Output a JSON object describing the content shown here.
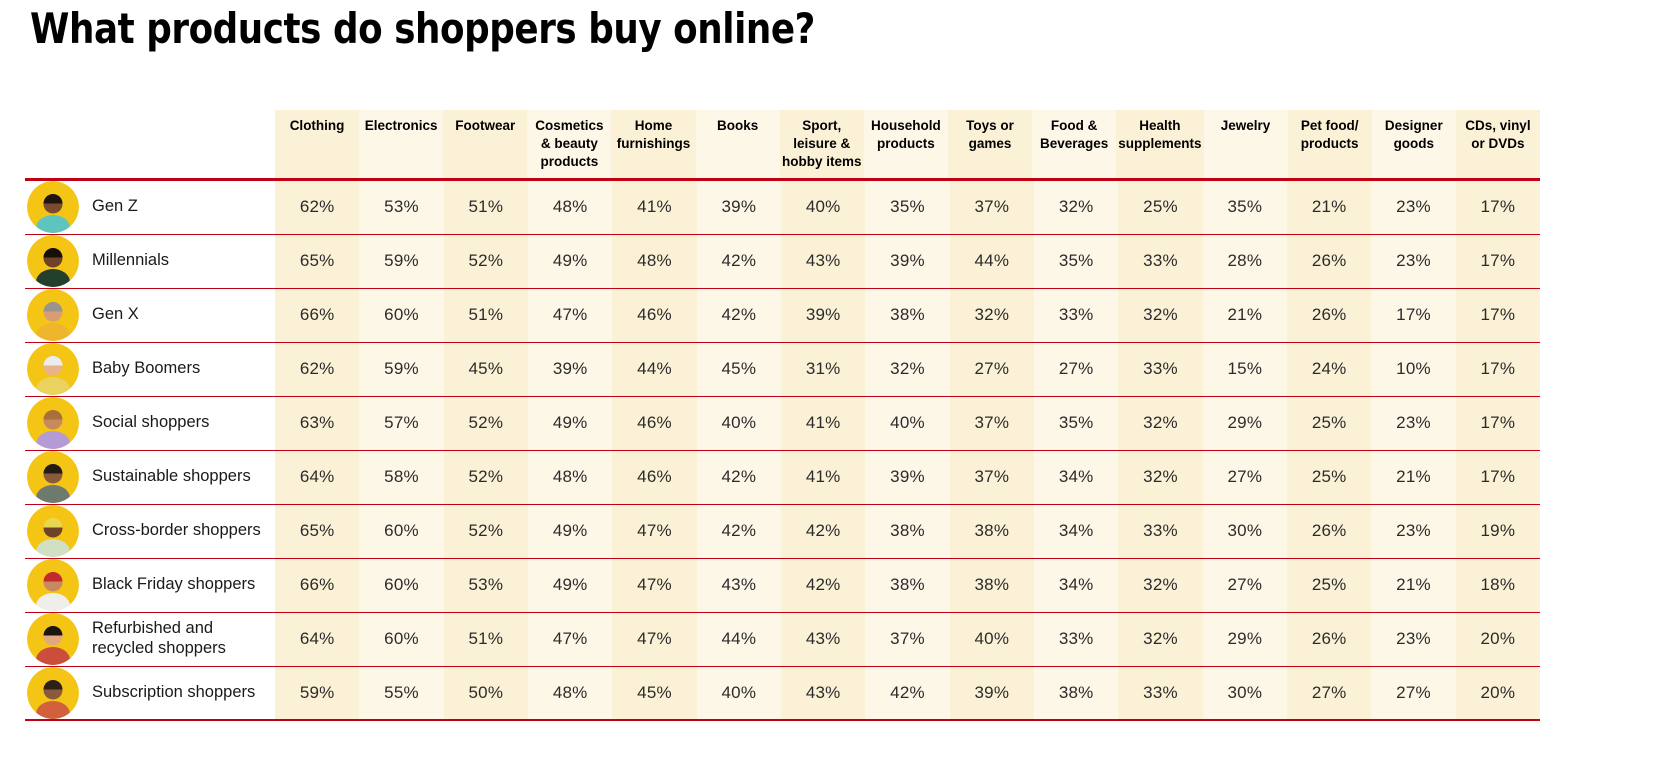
{
  "title": "What products do shoppers buy online?",
  "colors": {
    "page_bg": "#ffffff",
    "title": "#000000",
    "rule_red": "#c00014",
    "col_cream": "#fbf1d6",
    "col_cream_light": "#fdf7e8",
    "header_text": "#000000",
    "cell_text": "#2b2b2b",
    "label_text": "#1a1a1a",
    "avatar_bg_yellow": "#f5c515"
  },
  "table": {
    "columns": [
      "Clothing",
      "Electronics",
      "Footwear",
      "Cosmetics & beauty products",
      "Home furnishings",
      "Books",
      "Sport, leisure & hobby items",
      "Household products",
      "Toys or games",
      "Food & Beverages",
      "Health supplements",
      "Jewelry",
      "Pet food/ products",
      "Designer goods",
      "CDs, vinyl or DVDs"
    ],
    "rows": [
      {
        "id": "gen-z",
        "label": "Gen Z",
        "avatar": {
          "bg": "#f5c515",
          "skin": "#7c4a2d",
          "hair": "#201410",
          "shirt": "#5fc4bd"
        },
        "cells": [
          "62%",
          "53%",
          "51%",
          "48%",
          "41%",
          "39%",
          "40%",
          "35%",
          "37%",
          "32%",
          "25%",
          "35%",
          "21%",
          "23%",
          "17%"
        ]
      },
      {
        "id": "millennials",
        "label": "Millennials",
        "avatar": {
          "bg": "#f5c515",
          "skin": "#6e4226",
          "hair": "#17100a",
          "shirt": "#23402c"
        },
        "cells": [
          "65%",
          "59%",
          "52%",
          "49%",
          "48%",
          "42%",
          "43%",
          "39%",
          "44%",
          "35%",
          "33%",
          "28%",
          "26%",
          "23%",
          "17%"
        ]
      },
      {
        "id": "gen-x",
        "label": "Gen X",
        "avatar": {
          "bg": "#f5c515",
          "skin": "#d99d74",
          "hair": "#9a958c",
          "shirt": "#efb52c"
        },
        "cells": [
          "66%",
          "60%",
          "51%",
          "47%",
          "46%",
          "42%",
          "39%",
          "38%",
          "32%",
          "33%",
          "32%",
          "21%",
          "26%",
          "17%",
          "17%"
        ]
      },
      {
        "id": "baby-boomers",
        "label": "Baby Boomers",
        "avatar": {
          "bg": "#f5c515",
          "skin": "#e8b28b",
          "hair": "#ececec",
          "shirt": "#e9d35e"
        },
        "cells": [
          "62%",
          "59%",
          "45%",
          "39%",
          "44%",
          "45%",
          "31%",
          "32%",
          "27%",
          "27%",
          "33%",
          "15%",
          "24%",
          "10%",
          "17%"
        ]
      },
      {
        "id": "social-shoppers",
        "label": "Social shoppers",
        "avatar": {
          "bg": "#f5c515",
          "skin": "#c8895f",
          "hair": "#a8713c",
          "shirt": "#b59bd5"
        },
        "cells": [
          "63%",
          "57%",
          "52%",
          "49%",
          "46%",
          "40%",
          "41%",
          "40%",
          "37%",
          "35%",
          "32%",
          "29%",
          "25%",
          "23%",
          "17%"
        ]
      },
      {
        "id": "sustainable-shoppers",
        "label": "Sustainable shoppers",
        "avatar": {
          "bg": "#f5c515",
          "skin": "#8a5a3a",
          "hair": "#241b14",
          "shirt": "#6f7a6e"
        },
        "cells": [
          "64%",
          "58%",
          "52%",
          "48%",
          "46%",
          "42%",
          "41%",
          "39%",
          "37%",
          "34%",
          "32%",
          "27%",
          "25%",
          "21%",
          "17%"
        ]
      },
      {
        "id": "cross-border-shoppers",
        "label": "Cross-border shoppers",
        "avatar": {
          "bg": "#f5c515",
          "skin": "#6e4226",
          "hair": "#e9d84f",
          "shirt": "#cfe0c4"
        },
        "cells": [
          "65%",
          "60%",
          "52%",
          "49%",
          "47%",
          "42%",
          "42%",
          "38%",
          "38%",
          "34%",
          "33%",
          "30%",
          "26%",
          "23%",
          "19%"
        ]
      },
      {
        "id": "black-friday-shoppers",
        "label": "Black Friday shoppers",
        "avatar": {
          "bg": "#f5c515",
          "skin": "#c8895f",
          "hair": "#c22a2e",
          "shirt": "#efeeea"
        },
        "cells": [
          "66%",
          "60%",
          "53%",
          "49%",
          "47%",
          "43%",
          "42%",
          "38%",
          "38%",
          "34%",
          "32%",
          "27%",
          "25%",
          "21%",
          "18%"
        ]
      },
      {
        "id": "refurbished-recycled-shoppers",
        "label": "Refurbished and recycled shoppers",
        "avatar": {
          "bg": "#f5c515",
          "skin": "#e2a87e",
          "hair": "#1c1410",
          "shirt": "#cb4e3c"
        },
        "cells": [
          "64%",
          "60%",
          "51%",
          "47%",
          "47%",
          "44%",
          "43%",
          "37%",
          "40%",
          "33%",
          "32%",
          "29%",
          "26%",
          "23%",
          "20%"
        ]
      },
      {
        "id": "subscription-shoppers",
        "label": "Subscription shoppers",
        "avatar": {
          "bg": "#f5c515",
          "skin": "#8a5a3a",
          "hair": "#2e211a",
          "shirt": "#d2603c"
        },
        "cells": [
          "59%",
          "55%",
          "50%",
          "48%",
          "45%",
          "40%",
          "43%",
          "42%",
          "39%",
          "38%",
          "33%",
          "30%",
          "27%",
          "27%",
          "20%"
        ]
      }
    ]
  },
  "chart_data": {
    "type": "table",
    "title": "What products do shoppers buy online?",
    "unit": "%",
    "columns": [
      "Clothing",
      "Electronics",
      "Footwear",
      "Cosmetics & beauty products",
      "Home furnishings",
      "Books",
      "Sport, leisure & hobby items",
      "Household products",
      "Toys or games",
      "Food & Beverages",
      "Health supplements",
      "Jewelry",
      "Pet food/ products",
      "Designer goods",
      "CDs, vinyl or DVDs"
    ],
    "rows": [
      {
        "name": "Gen Z",
        "values_pct": [
          62,
          53,
          51,
          48,
          41,
          39,
          40,
          35,
          37,
          32,
          25,
          35,
          21,
          23,
          17
        ]
      },
      {
        "name": "Millennials",
        "values_pct": [
          65,
          59,
          52,
          49,
          48,
          42,
          43,
          39,
          44,
          35,
          33,
          28,
          26,
          23,
          17
        ]
      },
      {
        "name": "Gen X",
        "values_pct": [
          66,
          60,
          51,
          47,
          46,
          42,
          39,
          38,
          32,
          33,
          32,
          21,
          26,
          17,
          17
        ]
      },
      {
        "name": "Baby Boomers",
        "values_pct": [
          62,
          59,
          45,
          39,
          44,
          45,
          31,
          32,
          27,
          27,
          33,
          15,
          24,
          10,
          17
        ]
      },
      {
        "name": "Social shoppers",
        "values_pct": [
          63,
          57,
          52,
          49,
          46,
          40,
          41,
          40,
          37,
          35,
          32,
          29,
          25,
          23,
          17
        ]
      },
      {
        "name": "Sustainable shoppers",
        "values_pct": [
          64,
          58,
          52,
          48,
          46,
          42,
          41,
          39,
          37,
          34,
          32,
          27,
          25,
          21,
          17
        ]
      },
      {
        "name": "Cross-border shoppers",
        "values_pct": [
          65,
          60,
          52,
          49,
          47,
          42,
          42,
          38,
          38,
          34,
          33,
          30,
          26,
          23,
          19
        ]
      },
      {
        "name": "Black Friday shoppers",
        "values_pct": [
          66,
          60,
          53,
          49,
          47,
          43,
          42,
          38,
          38,
          34,
          32,
          27,
          25,
          21,
          18
        ]
      },
      {
        "name": "Refurbished and recycled shoppers",
        "values_pct": [
          64,
          60,
          51,
          47,
          47,
          44,
          43,
          37,
          40,
          33,
          32,
          29,
          26,
          23,
          20
        ]
      },
      {
        "name": "Subscription shoppers",
        "values_pct": [
          59,
          55,
          50,
          48,
          45,
          40,
          43,
          42,
          39,
          38,
          33,
          30,
          27,
          27,
          20
        ]
      }
    ]
  }
}
